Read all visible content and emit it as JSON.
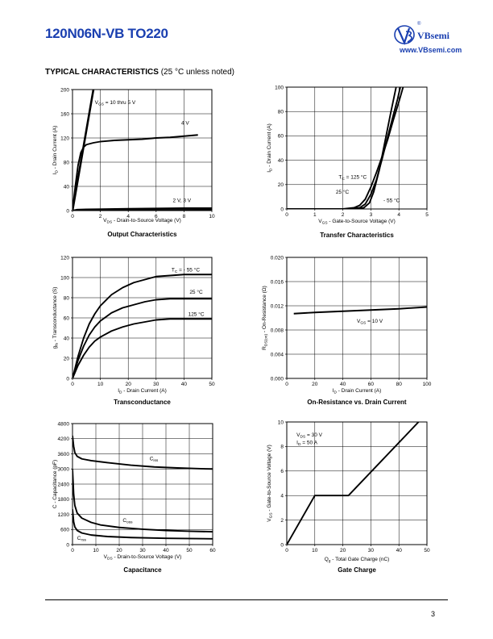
{
  "header": {
    "part_number": "120N06N-VB TO220",
    "brand_name": "VBsemi",
    "brand_url": "www.VBsemi.com",
    "brand_registered": "®"
  },
  "section": {
    "title": "TYPICAL CHARACTERISTICS",
    "note": "(25 °C unless noted)"
  },
  "footer": {
    "page_number": "3"
  },
  "chart_data": [
    {
      "id": "output",
      "type": "line",
      "title": "Output Characteristics",
      "xlabel": "VDS - Drain-to-Source Voltage (V)",
      "ylabel": "ID - Drain Current (A)",
      "xlim": [
        0,
        10
      ],
      "ylim": [
        0,
        200
      ],
      "xticks": [
        0,
        2,
        4,
        6,
        8,
        10
      ],
      "yticks": [
        0,
        40,
        80,
        120,
        160,
        200
      ],
      "grid": true,
      "series": [
        {
          "name": "VGS = 10 thru 5 V",
          "points": [
            [
              0,
              0
            ],
            [
              0.3,
              40
            ],
            [
              0.6,
              80
            ],
            [
              0.9,
              120
            ],
            [
              1.2,
              160
            ],
            [
              1.5,
              200
            ]
          ]
        },
        {
          "name": "4 V",
          "points": [
            [
              0,
              0
            ],
            [
              0.2,
              40
            ],
            [
              0.4,
              75
            ],
            [
              0.6,
              96
            ],
            [
              0.8,
              105
            ],
            [
              1.0,
              109
            ],
            [
              1.5,
              112
            ],
            [
              2,
              114
            ],
            [
              3,
              116
            ],
            [
              4,
              117
            ],
            [
              5,
              118
            ],
            [
              6,
              120
            ],
            [
              7,
              121
            ],
            [
              8,
              123
            ],
            [
              9,
              125
            ]
          ]
        },
        {
          "name": "2 V, 3 V",
          "points": [
            [
              0,
              0
            ],
            [
              0.3,
              1.5
            ],
            [
              1,
              2
            ],
            [
              4,
              3
            ],
            [
              8,
              4
            ],
            [
              10,
              4
            ]
          ]
        },
        {
          "name": "",
          "points": [
            [
              0,
              0
            ],
            [
              1,
              0.5
            ],
            [
              5,
              1
            ],
            [
              10,
              1.5
            ]
          ]
        }
      ],
      "annotations": [
        {
          "text": "VGS = 10 thru 5 V",
          "x": 1.6,
          "y": 176
        },
        {
          "text": "4 V",
          "x": 7.8,
          "y": 142
        },
        {
          "text": "2 V, 3 V",
          "x": 7.2,
          "y": 14
        }
      ]
    },
    {
      "id": "transfer",
      "type": "line",
      "title": "Transfer Characteristics",
      "xlabel": "VGS - Gate-to-Source Voltage (V)",
      "ylabel": "ID - Drain Current (A)",
      "xlim": [
        0,
        5
      ],
      "ylim": [
        0,
        100
      ],
      "xticks": [
        0,
        1,
        2,
        3,
        4,
        5
      ],
      "yticks": [
        0,
        20,
        40,
        60,
        80,
        100
      ],
      "grid": true,
      "series": [
        {
          "name": "TC = 125 °C",
          "points": [
            [
              0,
              0
            ],
            [
              2,
              0
            ],
            [
              2.4,
              1
            ],
            [
              2.6,
              3
            ],
            [
              2.8,
              8
            ],
            [
              3.0,
              18
            ],
            [
              3.2,
              30
            ],
            [
              3.4,
              43
            ],
            [
              3.6,
              57
            ],
            [
              3.8,
              73
            ],
            [
              4.0,
              88
            ],
            [
              4.15,
              100
            ]
          ]
        },
        {
          "name": "25 °C",
          "points": [
            [
              0,
              0
            ],
            [
              2.3,
              0
            ],
            [
              2.6,
              1
            ],
            [
              2.8,
              4
            ],
            [
              3.0,
              12
            ],
            [
              3.2,
              24
            ],
            [
              3.4,
              41
            ],
            [
              3.6,
              59
            ],
            [
              3.8,
              77
            ],
            [
              3.95,
              90
            ],
            [
              4.05,
              100
            ]
          ]
        },
        {
          "name": "- 55 °C",
          "points": [
            [
              0,
              0
            ],
            [
              2.5,
              0
            ],
            [
              2.75,
              1
            ],
            [
              2.95,
              5
            ],
            [
              3.1,
              14
            ],
            [
              3.3,
              32
            ],
            [
              3.5,
              55
            ],
            [
              3.7,
              78
            ],
            [
              3.9,
              100
            ]
          ]
        }
      ],
      "annotations": [
        {
          "text": "TC = 125 °C",
          "x": 1.85,
          "y": 25
        },
        {
          "text": "25 °C",
          "x": 1.75,
          "y": 12.5
        },
        {
          "text": "- 55 °C",
          "x": 3.45,
          "y": 5.5
        }
      ]
    },
    {
      "id": "transconductance",
      "type": "line",
      "title": "Transconductance",
      "xlabel": "ID - Drain Current (A)",
      "ylabel": "gfs - Transconductance (S)",
      "xlim": [
        0,
        50
      ],
      "ylim": [
        0,
        120
      ],
      "xticks": [
        0,
        10,
        20,
        30,
        40,
        50
      ],
      "yticks": [
        0,
        20,
        40,
        60,
        80,
        100,
        120
      ],
      "grid": true,
      "series": [
        {
          "name": "TC = - 55 °C",
          "points": [
            [
              0,
              0
            ],
            [
              2,
              22
            ],
            [
              4,
              40
            ],
            [
              6,
              54
            ],
            [
              8,
              64
            ],
            [
              10,
              72
            ],
            [
              14,
              83
            ],
            [
              18,
              90
            ],
            [
              22,
              95
            ],
            [
              26,
              98
            ],
            [
              30,
              101
            ],
            [
              35,
              102
            ],
            [
              40,
              103
            ],
            [
              50,
              103
            ]
          ]
        },
        {
          "name": "25 °C",
          "points": [
            [
              0,
              0
            ],
            [
              2,
              18
            ],
            [
              4,
              32
            ],
            [
              6,
              43
            ],
            [
              8,
              51
            ],
            [
              10,
              57
            ],
            [
              14,
              65
            ],
            [
              18,
              70
            ],
            [
              22,
              73
            ],
            [
              26,
              76
            ],
            [
              30,
              78
            ],
            [
              35,
              79
            ],
            [
              40,
              79
            ],
            [
              50,
              79
            ]
          ]
        },
        {
          "name": "125 °C",
          "points": [
            [
              0,
              0
            ],
            [
              2,
              13
            ],
            [
              4,
              23
            ],
            [
              6,
              31
            ],
            [
              8,
              37
            ],
            [
              10,
              41
            ],
            [
              14,
              47
            ],
            [
              18,
              51
            ],
            [
              22,
              54
            ],
            [
              26,
              56
            ],
            [
              30,
              58
            ],
            [
              35,
              59
            ],
            [
              40,
              59
            ],
            [
              50,
              59
            ]
          ]
        }
      ],
      "annotations": [
        {
          "text": "TC = - 55 °C",
          "x": 35.5,
          "y": 106
        },
        {
          "text": "25 °C",
          "x": 42,
          "y": 84
        },
        {
          "text": "125 °C",
          "x": 41.5,
          "y": 62
        }
      ]
    },
    {
      "id": "on_resistance",
      "type": "line",
      "title": "On-Resistance vs. Drain Current",
      "xlabel": "ID - Drain Current (A)",
      "ylabel": "RDS(on) - On-Resistance (Ω)",
      "xlim": [
        0,
        100
      ],
      "ylim": [
        0,
        0.02
      ],
      "xticks": [
        0,
        20,
        40,
        60,
        80,
        100
      ],
      "yticks": [
        0.0,
        0.004,
        0.008,
        0.012,
        0.016,
        0.02
      ],
      "tick_decimals": 3,
      "grid": true,
      "series": [
        {
          "name": "VGS = 10 V",
          "points": [
            [
              5,
              0.0107
            ],
            [
              20,
              0.0109
            ],
            [
              40,
              0.0111
            ],
            [
              60,
              0.0113
            ],
            [
              80,
              0.0115
            ],
            [
              100,
              0.0118
            ]
          ]
        }
      ],
      "annotations": [
        {
          "text": "VGS = 10 V",
          "x": 50,
          "y": 0.0092
        }
      ]
    },
    {
      "id": "capacitance",
      "type": "line",
      "title": "Capacitance",
      "xlabel": "VDS - Drain-to-Source Voltage (V)",
      "ylabel": "C - Capacitance (pF)",
      "xlim": [
        0,
        60
      ],
      "ylim": [
        0,
        4800
      ],
      "xticks": [
        0,
        10,
        20,
        30,
        40,
        50,
        60
      ],
      "yticks": [
        0,
        600,
        1200,
        1800,
        2400,
        3000,
        3600,
        4200,
        4800
      ],
      "grid": true,
      "series": [
        {
          "name": "Ciss",
          "points": [
            [
              0,
              4320
            ],
            [
              0.5,
              3900
            ],
            [
              1,
              3650
            ],
            [
              2,
              3500
            ],
            [
              4,
              3400
            ],
            [
              8,
              3330
            ],
            [
              15,
              3250
            ],
            [
              25,
              3150
            ],
            [
              35,
              3080
            ],
            [
              45,
              3040
            ],
            [
              55,
              3010
            ],
            [
              60,
              3000
            ]
          ]
        },
        {
          "name": "Coss",
          "points": [
            [
              0,
              3000
            ],
            [
              0.5,
              2000
            ],
            [
              1,
              1550
            ],
            [
              2,
              1250
            ],
            [
              4,
              1050
            ],
            [
              8,
              880
            ],
            [
              12,
              780
            ],
            [
              20,
              680
            ],
            [
              30,
              610
            ],
            [
              40,
              560
            ],
            [
              50,
              530
            ],
            [
              60,
              510
            ]
          ]
        },
        {
          "name": "Crss",
          "points": [
            [
              0,
              1400
            ],
            [
              0.5,
              900
            ],
            [
              1,
              700
            ],
            [
              2,
              560
            ],
            [
              4,
              460
            ],
            [
              8,
              380
            ],
            [
              15,
              320
            ],
            [
              25,
              280
            ],
            [
              40,
              250
            ],
            [
              60,
              230
            ]
          ]
        }
      ],
      "annotations": [
        {
          "text": "Ciss",
          "x": 33,
          "y": 3350
        },
        {
          "text": "Coss",
          "x": 21.5,
          "y": 900
        },
        {
          "text": "Crss",
          "x": 2,
          "y": 200
        }
      ]
    },
    {
      "id": "gate_charge",
      "type": "line",
      "title": "Gate Charge",
      "xlabel": "Qg - Total Gate Charge (nC)",
      "ylabel": "VGS - Gate-to-Source Voltage (V)",
      "xlim": [
        0,
        50
      ],
      "ylim": [
        0,
        10
      ],
      "xticks": [
        0,
        10,
        20,
        30,
        40,
        50
      ],
      "yticks": [
        0,
        2,
        4,
        6,
        8,
        10
      ],
      "grid": true,
      "series": [
        {
          "name": "VDS = 30 V, ID = 50 A",
          "points": [
            [
              0,
              0
            ],
            [
              10,
              4
            ],
            [
              22,
              4
            ],
            [
              47,
              10
            ]
          ]
        }
      ],
      "annotations": [
        {
          "text": "VDS = 30 V",
          "x": 3.5,
          "y": 8.8
        },
        {
          "text": "ID = 50 A",
          "x": 3.5,
          "y": 8.2
        }
      ]
    }
  ]
}
